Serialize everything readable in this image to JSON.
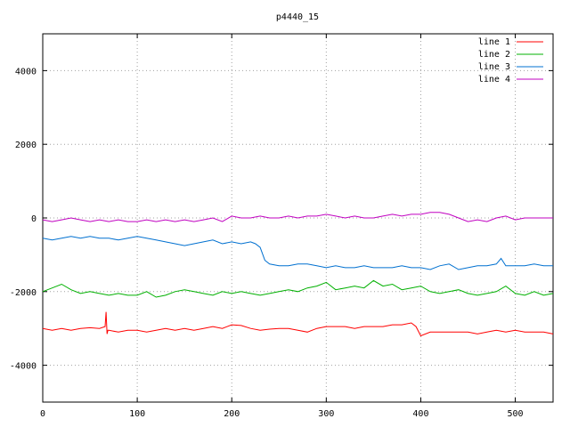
{
  "chart_data": {
    "type": "line",
    "title": "p4440_15",
    "xlabel": "",
    "ylabel": "",
    "xlim": [
      0,
      540
    ],
    "ylim": [
      -5000,
      5000
    ],
    "xticks": [
      0,
      100,
      200,
      300,
      400,
      500
    ],
    "yticks": [
      -4000,
      -2000,
      0,
      2000,
      4000
    ],
    "grid": true,
    "legend_position": "top-right",
    "series": [
      {
        "name": "line 1",
        "color": "#ff0000",
        "x": [
          0,
          10,
          20,
          30,
          40,
          50,
          60,
          66,
          67,
          68,
          69,
          70,
          80,
          90,
          100,
          110,
          120,
          130,
          140,
          150,
          160,
          170,
          180,
          190,
          200,
          210,
          220,
          230,
          240,
          250,
          260,
          270,
          280,
          290,
          300,
          310,
          320,
          330,
          340,
          350,
          360,
          370,
          380,
          390,
          395,
          400,
          410,
          420,
          430,
          440,
          450,
          460,
          470,
          480,
          490,
          500,
          510,
          520,
          530,
          540
        ],
        "values": [
          -3000,
          -3050,
          -3000,
          -3050,
          -3000,
          -2980,
          -3000,
          -2950,
          -2550,
          -3150,
          -3050,
          -3050,
          -3100,
          -3050,
          -3050,
          -3100,
          -3050,
          -3000,
          -3050,
          -3000,
          -3050,
          -3000,
          -2950,
          -3000,
          -2900,
          -2920,
          -3000,
          -3050,
          -3020,
          -3000,
          -3000,
          -3050,
          -3100,
          -3000,
          -2950,
          -2950,
          -2950,
          -3000,
          -2950,
          -2950,
          -2950,
          -2900,
          -2900,
          -2850,
          -2950,
          -3200,
          -3100,
          -3100,
          -3100,
          -3100,
          -3100,
          -3150,
          -3100,
          -3050,
          -3100,
          -3050,
          -3100,
          -3100,
          -3100,
          -3150
        ]
      },
      {
        "name": "line 2",
        "color": "#00b000",
        "x": [
          0,
          10,
          20,
          30,
          40,
          50,
          60,
          70,
          80,
          90,
          100,
          110,
          120,
          130,
          140,
          150,
          160,
          170,
          180,
          190,
          200,
          210,
          220,
          230,
          240,
          250,
          260,
          270,
          280,
          290,
          300,
          310,
          320,
          330,
          340,
          350,
          360,
          370,
          380,
          390,
          400,
          410,
          420,
          430,
          440,
          450,
          460,
          470,
          480,
          490,
          500,
          510,
          520,
          530,
          540
        ],
        "values": [
          -2000,
          -1900,
          -1800,
          -1950,
          -2050,
          -2000,
          -2050,
          -2100,
          -2050,
          -2100,
          -2100,
          -2000,
          -2150,
          -2100,
          -2000,
          -1950,
          -2000,
          -2050,
          -2100,
          -2000,
          -2050,
          -2000,
          -2050,
          -2100,
          -2050,
          -2000,
          -1950,
          -2000,
          -1900,
          -1850,
          -1750,
          -1950,
          -1900,
          -1850,
          -1900,
          -1700,
          -1850,
          -1800,
          -1950,
          -1900,
          -1850,
          -2000,
          -2050,
          -2000,
          -1950,
          -2050,
          -2100,
          -2050,
          -2000,
          -1850,
          -2050,
          -2100,
          -2000,
          -2100,
          -2050
        ]
      },
      {
        "name": "line 3",
        "color": "#0070d0",
        "x": [
          0,
          10,
          20,
          30,
          40,
          50,
          60,
          70,
          80,
          90,
          100,
          110,
          120,
          130,
          140,
          150,
          160,
          170,
          180,
          190,
          200,
          210,
          220,
          225,
          230,
          235,
          240,
          250,
          260,
          270,
          280,
          290,
          300,
          310,
          320,
          330,
          340,
          350,
          360,
          370,
          380,
          390,
          400,
          410,
          420,
          430,
          440,
          450,
          460,
          470,
          480,
          485,
          490,
          500,
          510,
          520,
          530,
          540
        ],
        "values": [
          -550,
          -600,
          -550,
          -500,
          -550,
          -500,
          -550,
          -550,
          -600,
          -550,
          -500,
          -550,
          -600,
          -650,
          -700,
          -750,
          -700,
          -650,
          -600,
          -700,
          -650,
          -700,
          -650,
          -700,
          -800,
          -1150,
          -1250,
          -1300,
          -1300,
          -1250,
          -1250,
          -1300,
          -1350,
          -1300,
          -1350,
          -1350,
          -1300,
          -1350,
          -1350,
          -1350,
          -1300,
          -1350,
          -1350,
          -1400,
          -1300,
          -1250,
          -1400,
          -1350,
          -1300,
          -1300,
          -1250,
          -1100,
          -1300,
          -1300,
          -1300,
          -1250,
          -1300,
          -1300
        ]
      },
      {
        "name": "line 4",
        "color": "#c000c0",
        "x": [
          0,
          10,
          20,
          30,
          40,
          50,
          60,
          70,
          80,
          90,
          100,
          110,
          120,
          130,
          140,
          150,
          160,
          170,
          180,
          190,
          200,
          210,
          220,
          230,
          240,
          250,
          260,
          270,
          280,
          290,
          300,
          310,
          320,
          330,
          340,
          350,
          360,
          370,
          380,
          390,
          400,
          410,
          420,
          430,
          440,
          450,
          460,
          470,
          480,
          490,
          500,
          510,
          520,
          530,
          540
        ],
        "values": [
          -50,
          -100,
          -50,
          0,
          -50,
          -100,
          -50,
          -100,
          -50,
          -100,
          -100,
          -50,
          -100,
          -50,
          -100,
          -50,
          -100,
          -50,
          0,
          -100,
          50,
          0,
          0,
          50,
          0,
          0,
          50,
          0,
          50,
          50,
          100,
          50,
          0,
          50,
          0,
          0,
          50,
          100,
          50,
          100,
          100,
          150,
          150,
          100,
          0,
          -100,
          -50,
          -100,
          0,
          50,
          -50,
          0,
          0,
          0,
          0
        ]
      }
    ]
  }
}
